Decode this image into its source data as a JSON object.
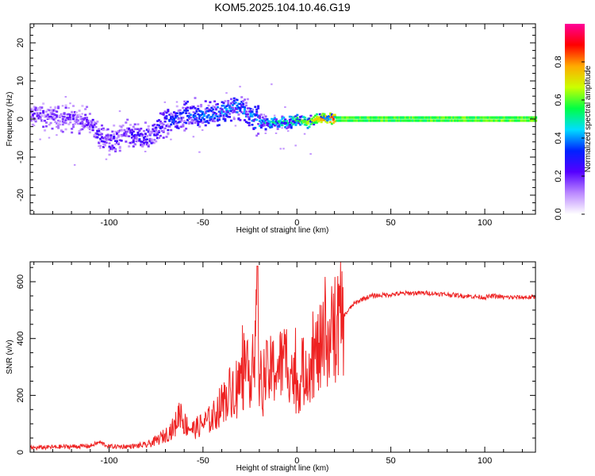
{
  "title": "KOM5.2025.104.10.46.G19",
  "chart_data": [
    {
      "type": "heatmap",
      "xlabel": "Height of straight line (km)",
      "ylabel": "Frequency (Hz)",
      "xlim": [
        -142,
        127
      ],
      "ylim": [
        -25,
        25
      ],
      "x_ticks": [
        -100,
        -50,
        0,
        50,
        100
      ],
      "y_ticks": [
        -20,
        -10,
        0,
        10,
        20
      ],
      "colorbar": {
        "label": "Normalized spectral amplitude",
        "range": [
          0,
          1
        ],
        "ticks": [
          0.0,
          0.2,
          0.4,
          0.6,
          0.8
        ],
        "colormap": [
          "#ffffff",
          "#bb88ff",
          "#5500ff",
          "#0022ff",
          "#00ddff",
          "#00ff44",
          "#ccff00",
          "#ffaa00",
          "#ff0000",
          "#ff0099"
        ]
      },
      "ridge": {
        "x": [
          -142,
          -130,
          -120,
          -110,
          -105,
          -100,
          -95,
          -90,
          -85,
          -80,
          -75,
          -70,
          -65,
          -60,
          -55,
          -50,
          -45,
          -40,
          -35,
          -30,
          -25,
          -20,
          -15,
          -10,
          -5,
          0,
          5,
          10,
          15,
          20,
          127
        ],
        "y": [
          1,
          0.5,
          0,
          -1,
          -5,
          -6,
          -5,
          -4,
          -5,
          -5,
          -3,
          -1,
          0,
          1,
          1,
          1,
          1,
          2,
          3,
          3,
          1,
          -1,
          -1,
          -1,
          -1,
          0,
          -1,
          0,
          0,
          0,
          0
        ],
        "amplitude": [
          0.18,
          0.18,
          0.2,
          0.2,
          0.22,
          0.25,
          0.2,
          0.22,
          0.25,
          0.28,
          0.3,
          0.3,
          0.32,
          0.35,
          0.35,
          0.38,
          0.38,
          0.4,
          0.4,
          0.38,
          0.42,
          0.45,
          0.5,
          0.55,
          0.55,
          0.6,
          0.65,
          0.75,
          0.85,
          0.95,
          0.98
        ]
      }
    },
    {
      "type": "line",
      "xlabel": "Height of straight line (km)",
      "ylabel": "SNR (v/v)",
      "xlim": [
        -142,
        127
      ],
      "ylim": [
        0,
        670
      ],
      "x_ticks": [
        -100,
        -50,
        0,
        50,
        100
      ],
      "y_ticks": [
        0,
        200,
        400,
        600
      ],
      "series": [
        {
          "color": "#ee2222",
          "x": [
            -142,
            -130,
            -120,
            -110,
            -105,
            -100,
            -90,
            -80,
            -75,
            -70,
            -65,
            -62,
            -60,
            -55,
            -50,
            -45,
            -40,
            -35,
            -30,
            -25,
            -22,
            -20,
            -15,
            -10,
            -5,
            0,
            5,
            10,
            15,
            20,
            25,
            30,
            35,
            40,
            50,
            60,
            70,
            80,
            90,
            100,
            105,
            110,
            127
          ],
          "y": [
            15,
            18,
            20,
            22,
            35,
            20,
            20,
            25,
            40,
            60,
            90,
            150,
            100,
            80,
            100,
            120,
            170,
            220,
            250,
            280,
            420,
            250,
            280,
            300,
            330,
            230,
            300,
            340,
            380,
            430,
            480,
            520,
            540,
            550,
            555,
            560,
            560,
            555,
            550,
            545,
            550,
            545,
            545
          ]
        }
      ]
    }
  ]
}
